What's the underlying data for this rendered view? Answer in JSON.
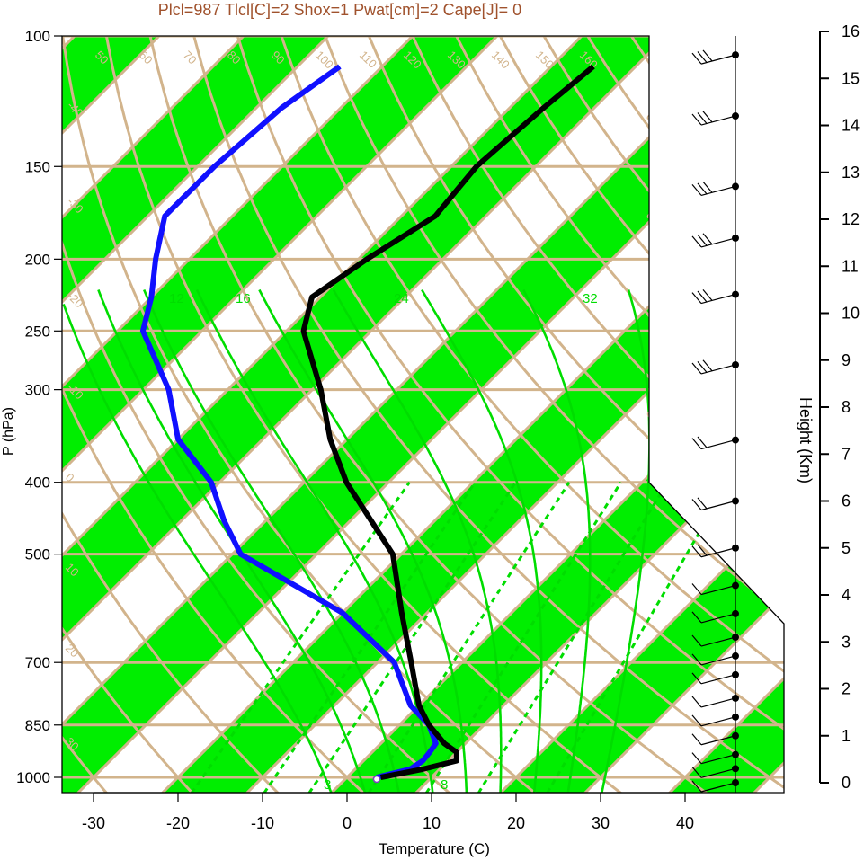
{
  "colors": {
    "band_green": "#00EE00",
    "grid_tan": "#D2B48C",
    "mixing_green": "#00DD00",
    "temperature": "#000000",
    "dewpoint": "#1010FF",
    "title": "#A0522D"
  },
  "chart_data": {
    "type": "skew-t",
    "title": "Plcl=987 Tlcl[C]=2 Shox=1 Pwat[cm]=2 Cape[J]= 0",
    "xlabel": "Temperature (C)",
    "ylabel": "P (hPa)",
    "y2label": "Height (Km)",
    "x_ticks": [
      "-30",
      "-20",
      "-10",
      "0",
      "10",
      "20",
      "30",
      "40"
    ],
    "p_ticks": [
      "100",
      "150",
      "200",
      "250",
      "300",
      "400",
      "500",
      "700",
      "850",
      "1000"
    ],
    "height_ticks": [
      "0",
      "1",
      "2",
      "3",
      "4",
      "5",
      "6",
      "7",
      "8",
      "9",
      "10",
      "11",
      "12",
      "13",
      "14",
      "15",
      "16"
    ],
    "dry_adiabat_labels": [
      "50",
      "60",
      "70",
      "80",
      "90",
      "100",
      "110",
      "120",
      "130",
      "140",
      "150",
      "160"
    ],
    "isotherm_labels": [
      "-40",
      "-30",
      "-20",
      "-10",
      "0",
      "10",
      "20",
      "30"
    ],
    "mixing_ratio_labels": [
      "3",
      "8",
      "12",
      "16",
      "24",
      "32"
    ],
    "temperature_profile": {
      "p": [
        1000,
        975,
        950,
        925,
        900,
        850,
        800,
        700,
        600,
        500,
        400,
        350,
        300,
        250,
        225,
        200,
        175,
        150,
        125,
        110
      ],
      "t": [
        4,
        8,
        11,
        10,
        7.5,
        3.5,
        0,
        -6,
        -13,
        -21,
        -35,
        -42,
        -49,
        -58,
        -61,
        -59,
        -56,
        -57,
        -56,
        -55
      ]
    },
    "dewpoint_profile": {
      "p": [
        1000,
        975,
        950,
        925,
        900,
        850,
        800,
        700,
        600,
        500,
        450,
        400,
        350,
        300,
        250,
        225,
        200,
        175,
        150,
        125,
        110
      ],
      "td": [
        3.5,
        6.5,
        7,
        6.8,
        6.5,
        3.5,
        -1,
        -8,
        -20,
        -39,
        -45,
        -51,
        -60,
        -67,
        -77,
        -80,
        -84,
        -88,
        -88,
        -87,
        -85
      ]
    },
    "wind_barbs": {
      "heights_km": [
        0,
        0.3,
        0.6,
        1,
        1.4,
        1.8,
        2.3,
        2.7,
        3.1,
        3.6,
        4.2,
        5,
        6,
        7.3,
        8.9,
        10.4,
        11.6,
        12.7,
        14.2,
        15.5
      ],
      "barbs": [
        1,
        1,
        1,
        1,
        1,
        1,
        1,
        1,
        1,
        1,
        1,
        2,
        2,
        2,
        3,
        3,
        3,
        3,
        3,
        3
      ]
    }
  }
}
